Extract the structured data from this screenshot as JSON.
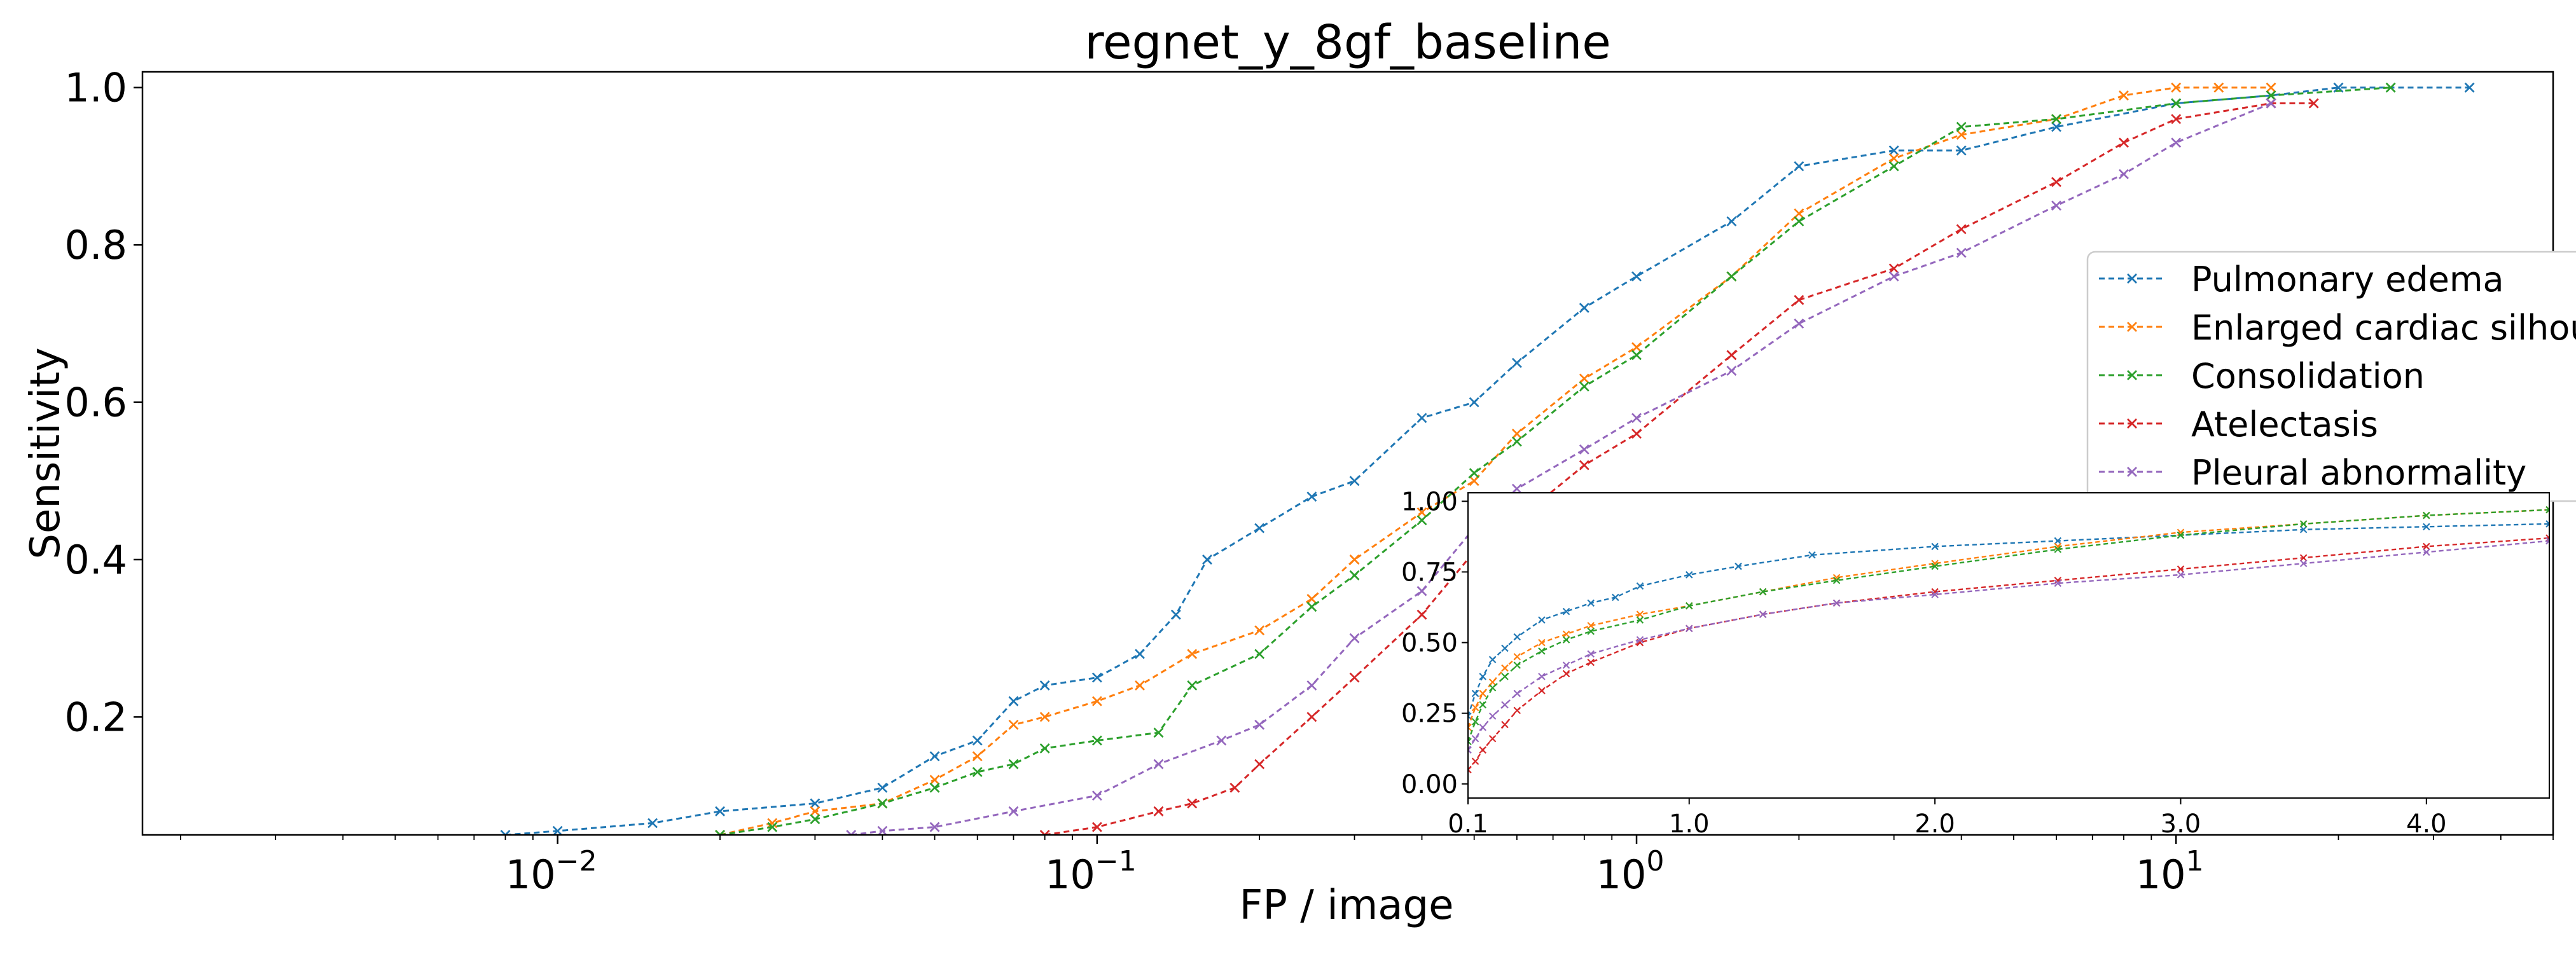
{
  "chart_data": [
    {
      "type": "line",
      "title": "regnet_y_8gf_baseline",
      "xlabel": "FP / image",
      "ylabel": "Sensitivity",
      "xscale": "log",
      "xlim": [
        0.0017,
        50
      ],
      "ylim": [
        0.05,
        1.02
      ],
      "x_ticks": [
        {
          "value": 0.01,
          "base": "10",
          "exp": "−2"
        },
        {
          "value": 0.1,
          "base": "10",
          "exp": "−1"
        },
        {
          "value": 1,
          "base": "10",
          "exp": "0"
        },
        {
          "value": 10,
          "base": "10",
          "exp": "1"
        }
      ],
      "y_ticks": [
        {
          "value": 0.2,
          "label": "0.2"
        },
        {
          "value": 0.4,
          "label": "0.4"
        },
        {
          "value": 0.6,
          "label": "0.6"
        },
        {
          "value": 0.8,
          "label": "0.8"
        },
        {
          "value": 1.0,
          "label": "1.0"
        }
      ],
      "grid": false,
      "legend_position": "center-right",
      "marker": "x",
      "line_style": "dashed",
      "series": [
        {
          "name": "Pulmonary edema",
          "color": "#1f77b4",
          "x": [
            0.008,
            0.01,
            0.015,
            0.02,
            0.03,
            0.04,
            0.05,
            0.06,
            0.07,
            0.08,
            0.1,
            0.12,
            0.14,
            0.16,
            0.2,
            0.25,
            0.3,
            0.4,
            0.5,
            0.6,
            0.8,
            1.0,
            1.5,
            2.0,
            3.0,
            4.0,
            6.0,
            10.0,
            15.0,
            20.0,
            35.0
          ],
          "y": [
            0.05,
            0.055,
            0.065,
            0.08,
            0.09,
            0.11,
            0.15,
            0.17,
            0.22,
            0.24,
            0.25,
            0.28,
            0.33,
            0.4,
            0.44,
            0.48,
            0.5,
            0.58,
            0.6,
            0.65,
            0.72,
            0.76,
            0.83,
            0.9,
            0.92,
            0.92,
            0.95,
            0.98,
            0.99,
            1.0,
            1.0
          ]
        },
        {
          "name": "Enlarged cardiac silhouette",
          "color": "#ff7f0e",
          "x": [
            0.02,
            0.025,
            0.03,
            0.04,
            0.05,
            0.06,
            0.07,
            0.08,
            0.1,
            0.12,
            0.15,
            0.2,
            0.25,
            0.3,
            0.4,
            0.5,
            0.6,
            0.8,
            1.0,
            1.5,
            2.0,
            3.0,
            4.0,
            6.0,
            8.0,
            10.0,
            12.0,
            15.0
          ],
          "y": [
            0.05,
            0.065,
            0.08,
            0.09,
            0.12,
            0.15,
            0.19,
            0.2,
            0.22,
            0.24,
            0.28,
            0.31,
            0.35,
            0.4,
            0.46,
            0.5,
            0.56,
            0.63,
            0.67,
            0.76,
            0.84,
            0.91,
            0.94,
            0.96,
            0.99,
            1.0,
            1.0,
            1.0
          ]
        },
        {
          "name": "Consolidation",
          "color": "#2ca02c",
          "x": [
            0.02,
            0.025,
            0.03,
            0.04,
            0.05,
            0.06,
            0.07,
            0.08,
            0.1,
            0.13,
            0.15,
            0.2,
            0.25,
            0.3,
            0.4,
            0.5,
            0.6,
            0.8,
            1.0,
            1.5,
            2.0,
            3.0,
            4.0,
            6.0,
            10.0,
            15.0,
            25.0
          ],
          "y": [
            0.05,
            0.06,
            0.07,
            0.09,
            0.11,
            0.13,
            0.14,
            0.16,
            0.17,
            0.18,
            0.24,
            0.28,
            0.34,
            0.38,
            0.45,
            0.51,
            0.55,
            0.62,
            0.66,
            0.76,
            0.83,
            0.9,
            0.95,
            0.96,
            0.98,
            0.99,
            1.0
          ]
        },
        {
          "name": "Atelectasis",
          "color": "#d62728",
          "x": [
            0.08,
            0.1,
            0.13,
            0.15,
            0.18,
            0.2,
            0.25,
            0.3,
            0.4,
            0.5,
            0.6,
            0.8,
            1.0,
            1.5,
            2.0,
            3.0,
            4.0,
            6.0,
            8.0,
            10.0,
            15.0,
            18.0
          ],
          "y": [
            0.05,
            0.06,
            0.08,
            0.09,
            0.11,
            0.14,
            0.2,
            0.25,
            0.33,
            0.41,
            0.45,
            0.52,
            0.56,
            0.66,
            0.73,
            0.77,
            0.82,
            0.88,
            0.93,
            0.96,
            0.98,
            0.98
          ]
        },
        {
          "name": "Pleural abnormality",
          "color": "#9467bd",
          "x": [
            0.035,
            0.04,
            0.05,
            0.07,
            0.1,
            0.13,
            0.17,
            0.2,
            0.25,
            0.3,
            0.4,
            0.5,
            0.6,
            0.8,
            1.0,
            1.5,
            2.0,
            3.0,
            4.0,
            6.0,
            8.0,
            10.0,
            15.0
          ],
          "y": [
            0.05,
            0.055,
            0.06,
            0.08,
            0.1,
            0.14,
            0.17,
            0.19,
            0.24,
            0.3,
            0.36,
            0.44,
            0.49,
            0.54,
            0.58,
            0.64,
            0.7,
            0.76,
            0.79,
            0.85,
            0.89,
            0.93,
            0.98
          ]
        }
      ]
    },
    {
      "type": "line",
      "title": "",
      "xlabel": "",
      "ylabel": "",
      "xscale": "linear",
      "xlim": [
        0.1,
        4.5
      ],
      "ylim": [
        -0.05,
        1.03
      ],
      "x_ticks": [
        {
          "value": 0.1,
          "label": "0.1"
        },
        {
          "value": 1.0,
          "label": "1.0"
        },
        {
          "value": 2.0,
          "label": "2.0"
        },
        {
          "value": 3.0,
          "label": "3.0"
        },
        {
          "value": 4.0,
          "label": "4.0"
        }
      ],
      "y_ticks": [
        {
          "value": 0.0,
          "label": "0.00"
        },
        {
          "value": 0.25,
          "label": "0.25"
        },
        {
          "value": 0.5,
          "label": "0.50"
        },
        {
          "value": 0.75,
          "label": "0.75"
        },
        {
          "value": 1.0,
          "label": "1.00"
        }
      ],
      "grid": false,
      "marker": "x",
      "line_style": "dashed",
      "series": [
        {
          "color": "#1f77b4",
          "x": [
            0.1,
            0.13,
            0.16,
            0.2,
            0.25,
            0.3,
            0.4,
            0.5,
            0.6,
            0.7,
            0.8,
            1.0,
            1.2,
            1.5,
            2.0,
            2.5,
            3.0,
            3.5,
            4.0,
            4.5
          ],
          "y": [
            0.24,
            0.32,
            0.38,
            0.44,
            0.48,
            0.52,
            0.58,
            0.61,
            0.64,
            0.66,
            0.7,
            0.74,
            0.77,
            0.81,
            0.84,
            0.86,
            0.88,
            0.9,
            0.91,
            0.92
          ]
        },
        {
          "color": "#ff7f0e",
          "x": [
            0.1,
            0.13,
            0.16,
            0.2,
            0.25,
            0.3,
            0.4,
            0.5,
            0.6,
            0.8,
            1.0,
            1.3,
            1.6,
            2.0,
            2.5,
            3.0,
            3.5,
            4.0,
            4.5
          ],
          "y": [
            0.2,
            0.27,
            0.32,
            0.36,
            0.41,
            0.45,
            0.5,
            0.53,
            0.56,
            0.6,
            0.63,
            0.68,
            0.73,
            0.78,
            0.84,
            0.89,
            0.92,
            0.95,
            0.97
          ]
        },
        {
          "color": "#2ca02c",
          "x": [
            0.1,
            0.13,
            0.16,
            0.2,
            0.25,
            0.3,
            0.4,
            0.5,
            0.6,
            0.8,
            1.0,
            1.3,
            1.6,
            2.0,
            2.5,
            3.0,
            3.5,
            4.0,
            4.5
          ],
          "y": [
            0.15,
            0.22,
            0.28,
            0.34,
            0.38,
            0.42,
            0.47,
            0.51,
            0.54,
            0.58,
            0.63,
            0.68,
            0.72,
            0.77,
            0.83,
            0.88,
            0.92,
            0.95,
            0.97
          ]
        },
        {
          "color": "#d62728",
          "x": [
            0.1,
            0.13,
            0.16,
            0.2,
            0.25,
            0.3,
            0.4,
            0.5,
            0.6,
            0.8,
            1.0,
            1.3,
            1.6,
            2.0,
            2.5,
            3.0,
            3.5,
            4.0,
            4.5
          ],
          "y": [
            0.05,
            0.08,
            0.12,
            0.16,
            0.21,
            0.26,
            0.33,
            0.39,
            0.43,
            0.5,
            0.55,
            0.6,
            0.64,
            0.68,
            0.72,
            0.76,
            0.8,
            0.84,
            0.87
          ]
        },
        {
          "color": "#9467bd",
          "x": [
            0.1,
            0.13,
            0.16,
            0.2,
            0.25,
            0.3,
            0.4,
            0.5,
            0.6,
            0.8,
            1.0,
            1.3,
            1.6,
            2.0,
            2.5,
            3.0,
            3.5,
            4.0,
            4.5
          ],
          "y": [
            0.12,
            0.16,
            0.2,
            0.24,
            0.28,
            0.32,
            0.38,
            0.42,
            0.46,
            0.51,
            0.55,
            0.6,
            0.64,
            0.67,
            0.71,
            0.74,
            0.78,
            0.82,
            0.86
          ]
        }
      ]
    }
  ]
}
